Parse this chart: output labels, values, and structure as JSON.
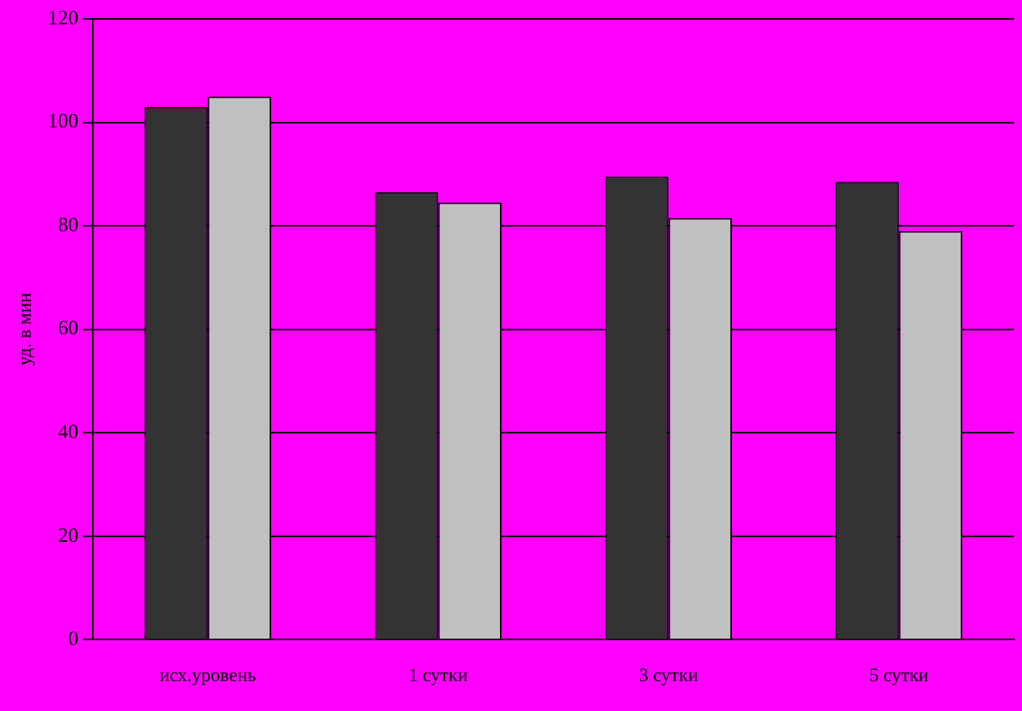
{
  "chart_data": {
    "type": "bar",
    "ylabel": "уд. в мин",
    "categories": [
      "исх.уровень",
      "1 сутки",
      "3 сутки",
      "5 сутки"
    ],
    "series": [
      {
        "color": "#333333",
        "values": [
          103,
          86.5,
          89.5,
          88.5
        ]
      },
      {
        "color": "#c0c0c0",
        "values": [
          105,
          84.5,
          81.5,
          79
        ]
      }
    ],
    "ylim": [
      0,
      120
    ],
    "yticks": [
      0,
      20,
      40,
      60,
      80,
      100,
      120
    ],
    "grid": "y",
    "legend": false
  }
}
